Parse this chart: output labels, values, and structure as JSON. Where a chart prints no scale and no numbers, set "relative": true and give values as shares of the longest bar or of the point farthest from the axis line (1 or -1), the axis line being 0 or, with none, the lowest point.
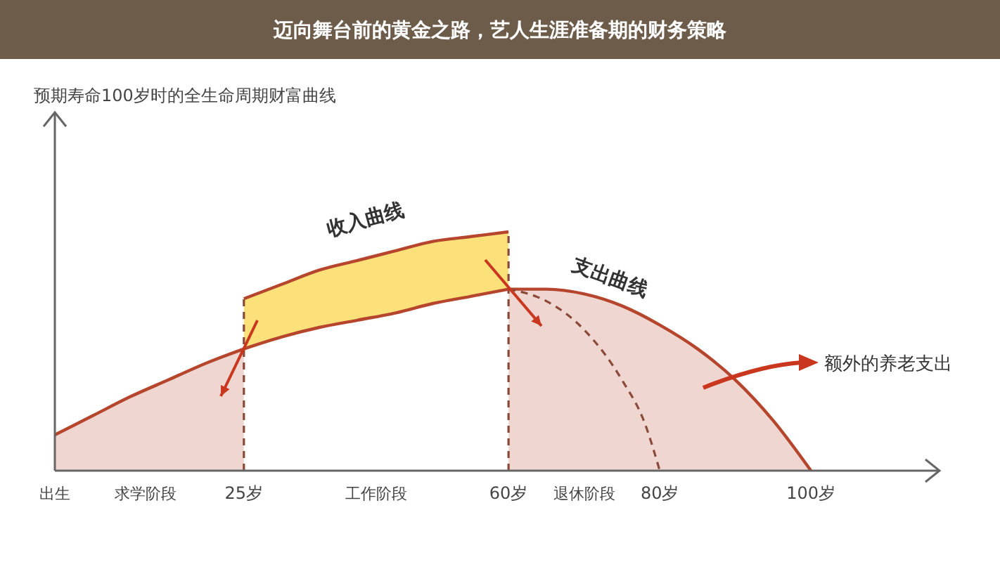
{
  "chart_data": {
    "type": "area",
    "relative": true,
    "title": "迈向舞台前的黄金之路，艺人生涯准备期的财务策略",
    "xlim": [
      0,
      117
    ],
    "xticks": [
      {
        "value": 0,
        "label": "出生"
      },
      {
        "value": 12,
        "label": "求学阶段"
      },
      {
        "value": 25,
        "label": "25岁"
      },
      {
        "value": 42.5,
        "label": "工作阶段"
      },
      {
        "value": 60,
        "label": "60岁"
      },
      {
        "value": 70,
        "label": "退休阶段"
      },
      {
        "value": 80,
        "label": "80岁"
      },
      {
        "value": 100,
        "label": "100岁"
      }
    ],
    "series": [
      {
        "color": "#b5452c",
        "x": [
          0,
          5,
          10,
          15,
          20,
          25
        ],
        "values": [
          0.15,
          0.23,
          0.31,
          0.38,
          0.45,
          0.51
        ]
      },
      {
        "type": "line",
        "name": "收入曲线",
        "color": "#b5452c",
        "x": [
          25,
          30,
          35,
          40,
          45,
          50,
          55,
          60
        ],
        "values": [
          0.72,
          0.78,
          0.84,
          0.88,
          0.92,
          0.96,
          0.98,
          1.0
        ],
        "lower": [
          0.51,
          0.56,
          0.6,
          0.63,
          0.66,
          0.7,
          0.73,
          0.76
        ],
        "upper": [
          0.72,
          0.78,
          0.84,
          0.88,
          0.92,
          0.96,
          0.98,
          1.0
        ]
      },
      {
        "type": "line",
        "color": "#b5452c",
        "x": [
          25,
          30,
          35,
          40,
          45,
          50,
          55,
          60
        ],
        "values": [
          0.51,
          0.56,
          0.6,
          0.63,
          0.66,
          0.7,
          0.73,
          0.76
        ]
      },
      {
        "name": "支出曲线",
        "color": "#b5452c",
        "x": [
          60,
          65,
          70,
          75,
          80,
          85,
          90,
          95,
          100
        ],
        "values": [
          0.76,
          0.76,
          0.74,
          0.69,
          0.61,
          0.51,
          0.38,
          0.21,
          0
        ]
      },
      {
        "type": "line",
        "line_style": "dashed",
        "color": "#8a4a3a",
        "x": [
          60,
          65,
          70,
          75,
          78,
          80
        ],
        "values": [
          0.76,
          0.71,
          0.59,
          0.38,
          0.2,
          0
        ]
      }
    ],
    "ref_lines": [
      {
        "axis": "x",
        "value": 25,
        "line_style": "dashed",
        "color": "#8a4a3a"
      },
      {
        "axis": "x",
        "value": 60,
        "line_style": "dashed",
        "color": "#8a4a3a"
      }
    ],
    "annotations": [
      "预期寿命100岁时的全生命周期财富曲线",
      "额外的养老支出"
    ]
  }
}
